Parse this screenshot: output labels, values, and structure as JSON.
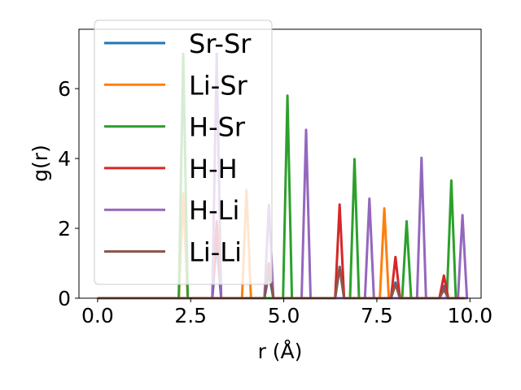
{
  "chart_data": {
    "type": "line",
    "title": "",
    "xlabel": "r (Å)",
    "ylabel": "g(r)",
    "xlim": [
      -0.5,
      10.3
    ],
    "ylim": [
      0,
      7.7
    ],
    "xticks": [
      0.0,
      2.5,
      5.0,
      7.5,
      10.0
    ],
    "xtick_labels": [
      "0.0",
      "2.5",
      "5.0",
      "7.5",
      "10.0"
    ],
    "yticks": [
      0,
      2,
      4,
      6
    ],
    "ytick_labels": [
      "0",
      "2",
      "4",
      "6"
    ],
    "grid": false,
    "legend_position": "top-left",
    "x_max": 9.85,
    "peak_half_width": 0.12,
    "series": [
      {
        "name": "Sr-Sr",
        "color": "#1f77b4",
        "peaks": [
          [
            3.2,
            1.6
          ],
          [
            4.6,
            0.7
          ],
          [
            6.5,
            0.9
          ],
          [
            8.0,
            0.45
          ],
          [
            9.3,
            0.35
          ]
        ]
      },
      {
        "name": "Li-Sr",
        "color": "#ff7f0e",
        "peaks": [
          [
            2.3,
            3.0
          ],
          [
            4.0,
            3.1
          ],
          [
            7.7,
            2.57
          ]
        ]
      },
      {
        "name": "H-Sr",
        "color": "#2ca02c",
        "peaks": [
          [
            2.3,
            7.0
          ],
          [
            5.1,
            5.8
          ],
          [
            6.9,
            3.98
          ],
          [
            8.3,
            2.2
          ],
          [
            9.5,
            3.37
          ]
        ]
      },
      {
        "name": "H-H",
        "color": "#d62728",
        "peaks": [
          [
            3.2,
            2.2
          ],
          [
            4.6,
            1.0
          ],
          [
            6.5,
            2.68
          ],
          [
            8.0,
            1.18
          ],
          [
            9.3,
            0.65
          ]
        ]
      },
      {
        "name": "H-Li",
        "color": "#9467bd",
        "peaks": [
          [
            3.2,
            7.0
          ],
          [
            4.6,
            2.67
          ],
          [
            5.6,
            4.82
          ],
          [
            7.3,
            2.85
          ],
          [
            8.7,
            4.02
          ],
          [
            9.8,
            2.38
          ]
        ]
      },
      {
        "name": "Li-Li",
        "color": "#8c564b",
        "peaks": [
          [
            4.6,
            0.88
          ],
          [
            6.5,
            0.88
          ],
          [
            8.0,
            0.4
          ],
          [
            9.3,
            0.25
          ]
        ]
      }
    ]
  }
}
